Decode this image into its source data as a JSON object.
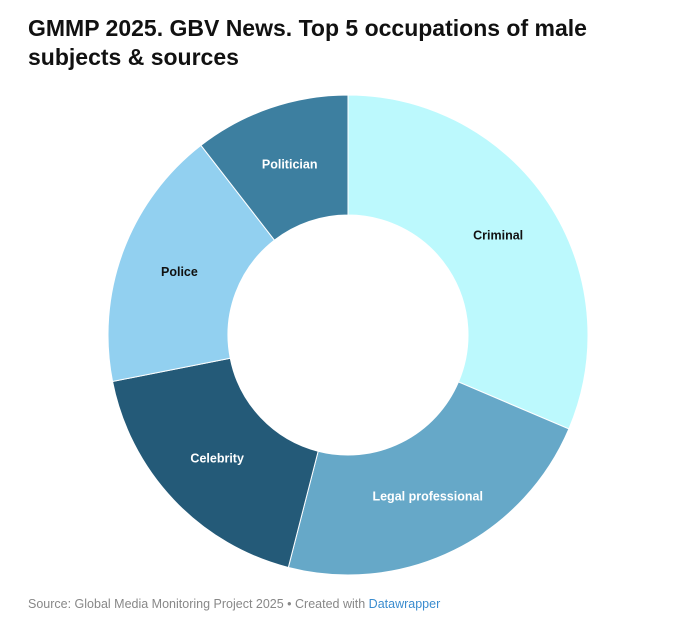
{
  "chart_data": {
    "type": "pie",
    "variant": "donut",
    "title": "GMMP 2025. GBV News. Top 5 occupations of male subjects & sources",
    "categories": [
      "Criminal",
      "Legal professional",
      "Celebrity",
      "Police",
      "Politician"
    ],
    "values": [
      31.4,
      22.6,
      17.9,
      17.6,
      10.5
    ],
    "colors": [
      "#bcf9fd",
      "#66a8c8",
      "#245a78",
      "#92d0f0",
      "#3d7fa0"
    ],
    "label_colors": [
      "#111111",
      "#ffffff",
      "#ffffff",
      "#111111",
      "#ffffff"
    ],
    "unit": "%"
  },
  "footer": {
    "source_text": "Source: Global Media Monitoring Project 2025 • Created with ",
    "link_text": "Datawrapper"
  }
}
